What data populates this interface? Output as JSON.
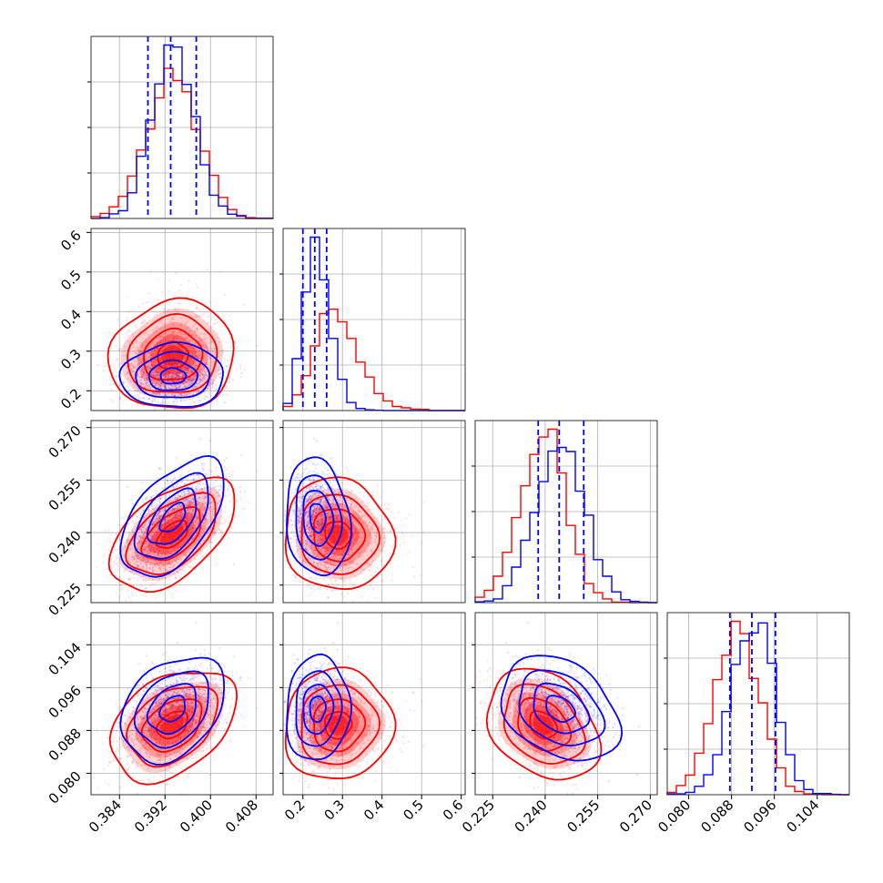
{
  "chart_data": {
    "type": "corner",
    "grid": true,
    "colors": {
      "red": "#ff0000",
      "blue": "#0000ff"
    },
    "series": [
      {
        "color": "#ff0000",
        "mean": [
          0.3935,
          0.285,
          0.2395,
          0.089
        ],
        "sd": [
          0.0045,
          0.055,
          0.0065,
          0.0042
        ],
        "corr": [
          [
            1.0,
            0.05,
            0.55,
            0.35
          ],
          [
            0.05,
            1.0,
            -0.1,
            0.05
          ],
          [
            0.55,
            -0.1,
            1.0,
            -0.3
          ],
          [
            0.35,
            0.05,
            -0.3,
            1.0
          ]
        ],
        "quantiles": []
      },
      {
        "color": "#0000ff",
        "mean": [
          0.3935,
          0.235,
          0.2445,
          0.092
        ],
        "sd": [
          0.0037,
          0.032,
          0.0068,
          0.004
        ],
        "corr": [
          [
            1.0,
            0.05,
            0.55,
            0.35
          ],
          [
            0.05,
            1.0,
            -0.1,
            0.05
          ],
          [
            0.55,
            -0.1,
            1.0,
            -0.3
          ],
          [
            0.35,
            0.05,
            -0.3,
            1.0
          ]
        ],
        "quantiles": [
          [
            0.389,
            0.393,
            0.3975
          ],
          [
            0.2,
            0.23,
            0.26
          ],
          [
            0.238,
            0.244,
            0.251
          ],
          [
            0.0877,
            0.0918,
            0.0962
          ]
        ]
      }
    ],
    "params": [
      {
        "range": [
          0.379,
          0.411
        ],
        "ticks": [
          0.384,
          0.392,
          0.4,
          0.408
        ],
        "tick_labels": [
          "0.384",
          "0.392",
          "0.400",
          "0.408"
        ]
      },
      {
        "range": [
          0.15,
          0.61
        ],
        "ticks": [
          0.2,
          0.3,
          0.4,
          0.5,
          0.6
        ],
        "tick_labels": [
          "0.2",
          "0.3",
          "0.4",
          "0.5",
          "0.6"
        ]
      },
      {
        "range": [
          0.22,
          0.272
        ],
        "ticks": [
          0.225,
          0.24,
          0.255,
          0.27
        ],
        "tick_labels": [
          "0.225",
          "0.240",
          "0.255",
          "0.270"
        ]
      },
      {
        "range": [
          0.076,
          0.11
        ],
        "ticks": [
          0.08,
          0.088,
          0.096,
          0.104
        ],
        "tick_labels": [
          "0.080",
          "0.088",
          "0.096",
          "0.104"
        ]
      }
    ]
  }
}
